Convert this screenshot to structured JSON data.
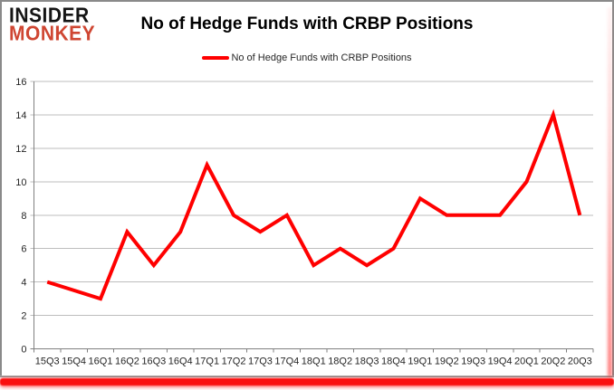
{
  "logo": {
    "line1": "INSIDER",
    "line2": "MONKEY",
    "primary_color": "#151515",
    "secondary_color": "#cf4632"
  },
  "header": {
    "title": "No of Hedge Funds with CRBP Positions"
  },
  "legend": {
    "label": "No of Hedge Funds with CRBP Positions",
    "marker_color": "#ff0000"
  },
  "chart_data": {
    "type": "line",
    "title": "No of Hedge Funds with CRBP Positions",
    "categories": [
      "15Q3",
      "15Q4",
      "16Q1",
      "16Q2",
      "16Q3",
      "16Q4",
      "17Q1",
      "17Q2",
      "17Q3",
      "17Q4",
      "18Q1",
      "18Q2",
      "18Q3",
      "18Q4",
      "19Q1",
      "19Q2",
      "19Q3",
      "19Q4",
      "20Q1",
      "20Q2",
      "20Q3"
    ],
    "series": [
      {
        "name": "No of Hedge Funds with CRBP Positions",
        "color": "#ff0000",
        "values": [
          4,
          3.5,
          3,
          7,
          5,
          7,
          11,
          8,
          7,
          8,
          5,
          6,
          5,
          6,
          9,
          8,
          8,
          8,
          10,
          14,
          8
        ]
      }
    ],
    "xlabel": "",
    "ylabel": "",
    "ylim": [
      0,
      16
    ],
    "ytick_step": 2,
    "grid": "horizontal-on",
    "legend_position": "top-center",
    "colors": {
      "gridline": "#bdbdbd",
      "axis": "#808080",
      "tick_label": "#262626"
    }
  },
  "frame": {
    "border_color": "#8a8a8a",
    "accent_bar_color": "#fa0f0f"
  }
}
